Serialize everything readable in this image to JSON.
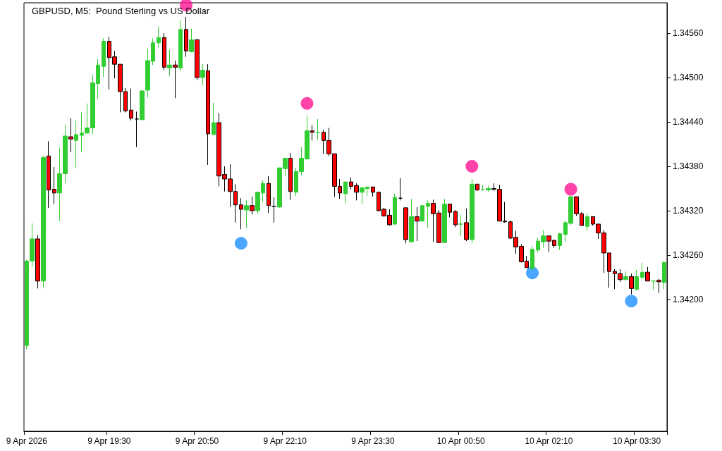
{
  "chart_data": {
    "type": "candlestick",
    "title": "GBPUSD, M5:  Pound Sterling vs US Dollar",
    "categories": [
      "9 Apr 2026",
      null,
      null,
      null,
      null,
      null,
      null,
      null,
      null,
      null,
      null,
      null,
      null,
      null,
      null,
      "9 Apr 19:30",
      null,
      null,
      null,
      null,
      null,
      null,
      null,
      null,
      null,
      null,
      null,
      null,
      null,
      null,
      null,
      "9 Apr 20:50",
      null,
      null,
      null,
      null,
      null,
      null,
      null,
      null,
      null,
      null,
      null,
      null,
      null,
      null,
      null,
      "9 Apr 22:10",
      null,
      null,
      null,
      null,
      null,
      null,
      null,
      null,
      null,
      null,
      null,
      null,
      null,
      null,
      null,
      "9 Apr 23:30",
      null,
      null,
      null,
      null,
      null,
      null,
      null,
      null,
      null,
      null,
      null,
      null,
      null,
      null,
      null,
      "10 Apr 00:50",
      null,
      null,
      null,
      null,
      null,
      null,
      null,
      null,
      null,
      null,
      null,
      null,
      null,
      null,
      null,
      "10 Apr 02:10",
      null,
      null,
      null,
      null,
      null,
      null,
      null,
      null,
      null,
      null,
      null,
      null,
      null,
      null,
      null,
      "10 Apr 03:30",
      null,
      null,
      null,
      null,
      null
    ],
    "ohlc": [
      [
        1.34138,
        1.34254,
        1.34133,
        1.34252
      ],
      [
        1.34252,
        1.34303,
        1.34244,
        1.34282
      ],
      [
        1.34282,
        1.34287,
        1.34215,
        1.34225
      ],
      [
        1.34225,
        1.34394,
        1.34216,
        1.34392
      ],
      [
        1.34394,
        1.34414,
        1.34324,
        1.34348
      ],
      [
        1.34349,
        1.34379,
        1.34329,
        1.34344
      ],
      [
        1.34344,
        1.34405,
        1.34306,
        1.3437
      ],
      [
        1.3437,
        1.34435,
        1.34357,
        1.34421
      ],
      [
        1.3442,
        1.34445,
        1.34399,
        1.34417
      ],
      [
        1.34415,
        1.34442,
        1.34378,
        1.34423
      ],
      [
        1.34422,
        1.34453,
        1.34399,
        1.34425
      ],
      [
        1.34425,
        1.34465,
        1.34424,
        1.34432
      ],
      [
        1.34432,
        1.34504,
        1.34424,
        1.34493
      ],
      [
        1.34492,
        1.34525,
        1.34471,
        1.34517
      ],
      [
        1.34515,
        1.34553,
        1.34501,
        1.34549
      ],
      [
        1.34549,
        1.34555,
        1.34484,
        1.34527
      ],
      [
        1.34528,
        1.34536,
        1.34499,
        1.34518
      ],
      [
        1.34518,
        1.34518,
        1.34453,
        1.34481
      ],
      [
        1.34481,
        1.34486,
        1.34453,
        1.34455
      ],
      [
        1.34456,
        1.34485,
        1.34442,
        1.34445
      ],
      [
        1.34444,
        1.34454,
        1.34406,
        1.34444
      ],
      [
        1.34443,
        1.34482,
        1.34443,
        1.34482
      ],
      [
        1.34483,
        1.34539,
        1.34473,
        1.34523
      ],
      [
        1.34522,
        1.34553,
        1.34517,
        1.34547
      ],
      [
        1.34547,
        1.34569,
        1.34541,
        1.34554
      ],
      [
        1.34554,
        1.3456,
        1.3451,
        1.34514
      ],
      [
        1.34513,
        1.34538,
        1.34502,
        1.34517
      ],
      [
        1.34517,
        1.34523,
        1.34472,
        1.34514
      ],
      [
        1.34513,
        1.34577,
        1.34509,
        1.34565
      ],
      [
        1.34565,
        1.34582,
        1.34528,
        1.34536
      ],
      [
        1.34535,
        1.34566,
        1.34534,
        1.34551
      ],
      [
        1.34551,
        1.34552,
        1.34497,
        1.345
      ],
      [
        1.345,
        1.34518,
        1.3449,
        1.3451
      ],
      [
        1.34509,
        1.34518,
        1.34382,
        1.34424
      ],
      [
        1.34423,
        1.34466,
        1.34423,
        1.34439
      ],
      [
        1.34439,
        1.34452,
        1.34353,
        1.34367
      ],
      [
        1.34369,
        1.3438,
        1.34346,
        1.34363
      ],
      [
        1.34363,
        1.34383,
        1.34325,
        1.34346
      ],
      [
        1.34346,
        1.34356,
        1.34304,
        1.34328
      ],
      [
        1.34328,
        1.34337,
        1.34295,
        1.34322
      ],
      [
        1.34321,
        1.34334,
        1.34297,
        1.34327
      ],
      [
        1.34327,
        1.34339,
        1.34315,
        1.3432
      ],
      [
        1.3432,
        1.34346,
        1.34316,
        1.34345
      ],
      [
        1.34344,
        1.34361,
        1.34332,
        1.34357
      ],
      [
        1.34357,
        1.34367,
        1.34317,
        1.34327
      ],
      [
        1.34326,
        1.34338,
        1.34304,
        1.34326
      ],
      [
        1.34325,
        1.34378,
        1.34324,
        1.34378
      ],
      [
        1.34377,
        1.34391,
        1.34367,
        1.34391
      ],
      [
        1.34391,
        1.34398,
        1.34335,
        1.34346
      ],
      [
        1.34345,
        1.34378,
        1.3434,
        1.34373
      ],
      [
        1.34373,
        1.34406,
        1.34368,
        1.34391
      ],
      [
        1.3439,
        1.34449,
        1.34389,
        1.34428
      ],
      [
        1.34428,
        1.34436,
        1.34415,
        1.34426
      ],
      [
        1.34426,
        1.34444,
        1.34416,
        1.34426
      ],
      [
        1.34426,
        1.34429,
        1.34397,
        1.34415
      ],
      [
        1.34415,
        1.34432,
        1.34394,
        1.34397
      ],
      [
        1.34397,
        1.34397,
        1.34339,
        1.34353
      ],
      [
        1.34353,
        1.34363,
        1.34336,
        1.34344
      ],
      [
        1.34343,
        1.34359,
        1.3433,
        1.34359
      ],
      [
        1.34359,
        1.34365,
        1.34349,
        1.34353
      ],
      [
        1.34354,
        1.34357,
        1.34334,
        1.34345
      ],
      [
        1.34345,
        1.34352,
        1.34329,
        1.34351
      ],
      [
        1.3435,
        1.34353,
        1.3434,
        1.34352
      ],
      [
        1.34352,
        1.34353,
        1.34339,
        1.34345
      ],
      [
        1.34345,
        1.34345,
        1.3432,
        1.3432
      ],
      [
        1.34322,
        1.34324,
        1.34312,
        1.34313
      ],
      [
        1.34314,
        1.34322,
        1.343,
        1.34301
      ],
      [
        1.34302,
        1.34343,
        1.34301,
        1.34338
      ],
      [
        1.34337,
        1.34364,
        1.34334,
        1.34337
      ],
      [
        1.34324,
        1.34324,
        1.34276,
        1.34281
      ],
      [
        1.34278,
        1.34336,
        1.34277,
        1.34312
      ],
      [
        1.34312,
        1.34325,
        1.34279,
        1.34306
      ],
      [
        1.34306,
        1.34327,
        1.34306,
        1.34327
      ],
      [
        1.34326,
        1.34334,
        1.34297,
        1.3433
      ],
      [
        1.3433,
        1.34335,
        1.34278,
        1.34316
      ],
      [
        1.34317,
        1.34321,
        1.34277,
        1.34277
      ],
      [
        1.34277,
        1.34336,
        1.34277,
        1.34329
      ],
      [
        1.34329,
        1.34329,
        1.34311,
        1.34318
      ],
      [
        1.34319,
        1.34321,
        1.34298,
        1.34301
      ],
      [
        1.34302,
        1.34314,
        1.34286,
        1.34302
      ],
      [
        1.34304,
        1.34323,
        1.34279,
        1.34281
      ],
      [
        1.34281,
        1.34363,
        1.34276,
        1.34356
      ],
      [
        1.34356,
        1.34356,
        1.34347,
        1.34348
      ],
      [
        1.34349,
        1.34355,
        1.34347,
        1.34349
      ],
      [
        1.34348,
        1.34354,
        1.34346,
        1.3435
      ],
      [
        1.3435,
        1.34357,
        1.34347,
        1.34349
      ],
      [
        1.34349,
        1.34355,
        1.34306,
        1.34306
      ],
      [
        1.34306,
        1.34332,
        1.34304,
        1.34305
      ],
      [
        1.34305,
        1.34307,
        1.34282,
        1.34283
      ],
      [
        1.34284,
        1.34293,
        1.34262,
        1.34271
      ],
      [
        1.34272,
        1.34275,
        1.3425,
        1.34251
      ],
      [
        1.34252,
        1.34259,
        1.34243,
        1.34243
      ],
      [
        1.34242,
        1.34272,
        1.34239,
        1.34268
      ],
      [
        1.34267,
        1.34283,
        1.34264,
        1.34279
      ],
      [
        1.34278,
        1.34294,
        1.3427,
        1.34286
      ],
      [
        1.34286,
        1.34286,
        1.34264,
        1.34279
      ],
      [
        1.3428,
        1.34281,
        1.3427,
        1.34273
      ],
      [
        1.34273,
        1.3429,
        1.34267,
        1.34289
      ],
      [
        1.34288,
        1.34307,
        1.34278,
        1.34304
      ],
      [
        1.34303,
        1.34339,
        1.34301,
        1.34339
      ],
      [
        1.34339,
        1.34339,
        1.34313,
        1.34316
      ],
      [
        1.34316,
        1.34318,
        1.343,
        1.343
      ],
      [
        1.34299,
        1.34317,
        1.34293,
        1.34312
      ],
      [
        1.34312,
        1.34312,
        1.343,
        1.34302
      ],
      [
        1.34302,
        1.34302,
        1.34282,
        1.3429
      ],
      [
        1.3429,
        1.34294,
        1.34236,
        1.34263
      ],
      [
        1.34263,
        1.34263,
        1.34216,
        1.34238
      ],
      [
        1.34238,
        1.34241,
        1.34214,
        1.34235
      ],
      [
        1.34235,
        1.34241,
        1.34224,
        1.34227
      ],
      [
        1.34227,
        1.34238,
        1.34226,
        1.34231
      ],
      [
        1.34231,
        1.34235,
        1.34207,
        1.34215
      ],
      [
        1.34214,
        1.3424,
        1.34212,
        1.34231
      ],
      [
        1.3423,
        1.3425,
        1.34227,
        1.34237
      ],
      [
        1.34237,
        1.34244,
        1.34225,
        1.34225
      ],
      [
        1.34225,
        1.34226,
        1.34213,
        1.34225
      ],
      [
        1.34226,
        1.34228,
        1.34209,
        1.34224
      ],
      [
        1.34223,
        1.34252,
        1.34214,
        1.3425
      ]
    ],
    "colors": [
      "#32cd32",
      "#32cd32",
      "#ff0000",
      "#32cd32",
      "#ff0000",
      "#ff0000",
      "#32cd32",
      "#32cd32",
      "#ff0000",
      "#32cd32",
      "#32cd32",
      "#32cd32",
      "#32cd32",
      "#32cd32",
      "#32cd32",
      "#ff0000",
      "#ff0000",
      "#ff0000",
      "#ff0000",
      "#ff0000",
      "#000000",
      "#32cd32",
      "#32cd32",
      "#32cd32",
      "#32cd32",
      "#ff0000",
      "#32cd32",
      "#ff0000",
      "#32cd32",
      "#ff0000",
      "#32cd32",
      "#ff0000",
      "#32cd32",
      "#ff0000",
      "#32cd32",
      "#ff0000",
      "#ff0000",
      "#ff0000",
      "#ff0000",
      "#ff0000",
      "#32cd32",
      "#ff0000",
      "#32cd32",
      "#32cd32",
      "#ff0000",
      "#000000",
      "#32cd32",
      "#32cd32",
      "#ff0000",
      "#32cd32",
      "#32cd32",
      "#32cd32",
      "#ff0000",
      "#32cd32",
      "#ff0000",
      "#ff0000",
      "#ff0000",
      "#ff0000",
      "#32cd32",
      "#ff0000",
      "#ff0000",
      "#32cd32",
      "#32cd32",
      "#ff0000",
      "#ff0000",
      "#ff0000",
      "#ff0000",
      "#32cd32",
      "#000000",
      "#ff0000",
      "#32cd32",
      "#ff0000",
      "#32cd32",
      "#32cd32",
      "#ff0000",
      "#ff0000",
      "#32cd32",
      "#ff0000",
      "#ff0000",
      "#32cd32",
      "#ff0000",
      "#32cd32",
      "#ff0000",
      "#32cd32",
      "#32cd32",
      "#000000",
      "#ff0000",
      "#ff0000",
      "#ff0000",
      "#ff0000",
      "#ff0000",
      "#ff0000",
      "#32cd32",
      "#32cd32",
      "#32cd32",
      "#ff0000",
      "#ff0000",
      "#32cd32",
      "#32cd32",
      "#32cd32",
      "#ff0000",
      "#ff0000",
      "#32cd32",
      "#ff0000",
      "#ff0000",
      "#ff0000",
      "#ff0000",
      "#ff0000",
      "#ff0000",
      "#32cd32",
      "#ff0000",
      "#32cd32",
      "#32cd32",
      "#ff0000",
      "#32cd32",
      "#ff0000",
      "#32cd32"
    ],
    "series": [
      {
        "type": "scatter",
        "color": "#ff1493",
        "values": [
          null,
          null,
          null,
          null,
          null,
          null,
          null,
          null,
          null,
          null,
          null,
          null,
          null,
          null,
          null,
          null,
          null,
          null,
          null,
          null,
          null,
          null,
          null,
          null,
          null,
          null,
          null,
          null,
          null,
          1.34598,
          null,
          null,
          null,
          null,
          null,
          null,
          null,
          null,
          null,
          null,
          null,
          null,
          null,
          null,
          null,
          null,
          null,
          null,
          null,
          null,
          null,
          1.34465,
          null,
          null,
          null,
          null,
          null,
          null,
          null,
          null,
          null,
          null,
          null,
          null,
          null,
          null,
          null,
          null,
          null,
          null,
          null,
          null,
          null,
          null,
          null,
          null,
          null,
          null,
          null,
          null,
          null,
          1.3438,
          null,
          null,
          null,
          null,
          null,
          null,
          null,
          null,
          null,
          null,
          null,
          null,
          null,
          null,
          null,
          null,
          null,
          1.34349,
          null,
          null,
          null,
          null,
          null,
          null,
          null,
          null,
          null,
          null,
          null,
          null,
          null,
          null,
          null,
          null,
          null
        ]
      },
      {
        "type": "scatter",
        "color": "#1e90ff",
        "values": [
          null,
          null,
          null,
          null,
          null,
          null,
          null,
          null,
          null,
          null,
          null,
          null,
          null,
          null,
          null,
          null,
          null,
          null,
          null,
          null,
          null,
          null,
          null,
          null,
          null,
          null,
          null,
          null,
          null,
          null,
          null,
          null,
          null,
          null,
          null,
          null,
          null,
          null,
          null,
          1.34276,
          null,
          null,
          null,
          null,
          null,
          null,
          null,
          null,
          null,
          null,
          null,
          null,
          null,
          null,
          null,
          null,
          null,
          null,
          null,
          null,
          null,
          null,
          null,
          null,
          null,
          null,
          null,
          null,
          null,
          null,
          null,
          null,
          null,
          null,
          null,
          null,
          null,
          null,
          null,
          null,
          null,
          null,
          null,
          null,
          null,
          null,
          null,
          null,
          null,
          null,
          null,
          null,
          1.34236,
          null,
          null,
          null,
          null,
          null,
          null,
          null,
          null,
          null,
          null,
          null,
          null,
          null,
          null,
          null,
          null,
          null,
          1.34198,
          null,
          null,
          null,
          null,
          null,
          null
        ]
      }
    ],
    "marker": "circle",
    "ylim": [
      1.34022,
      1.34601
    ],
    "yticks": [
      {
        "value": 1.342,
        "label": "1.34200"
      },
      {
        "value": 1.3426,
        "label": "1.34260"
      },
      {
        "value": 1.3432,
        "label": "1.34320"
      },
      {
        "value": 1.3438,
        "label": "1.34380"
      },
      {
        "value": 1.3444,
        "label": "1.34440"
      },
      {
        "value": 1.345,
        "label": "1.34500"
      },
      {
        "value": 1.3456,
        "label": "1.34560"
      }
    ],
    "grid": false
  }
}
